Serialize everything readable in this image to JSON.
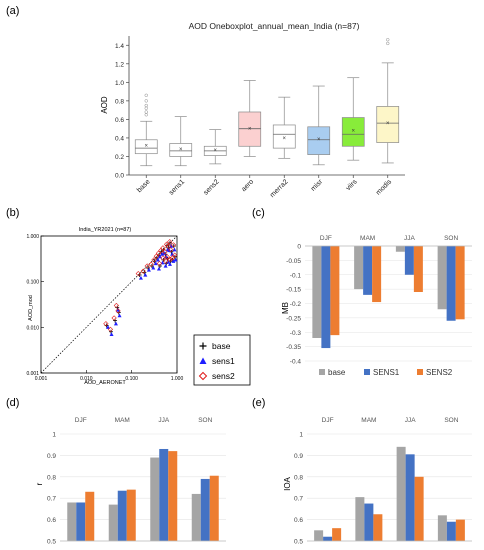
{
  "panels": {
    "a": {
      "label": "(a)"
    },
    "b": {
      "label": "(b)"
    },
    "c": {
      "label": "(c)"
    },
    "d": {
      "label": "(d)"
    },
    "e": {
      "label": "(e)"
    }
  },
  "chart_data": [
    {
      "id": "a",
      "type": "box",
      "title": "AOD Oneboxplot_annual_mean_India (n=87)",
      "ylabel": "AOD",
      "ylim": [
        0,
        1.5
      ],
      "yticks": [
        "0.0",
        "0.2",
        "0.4",
        "0.6",
        "0.8",
        "1.0",
        "1.2",
        "1.4"
      ],
      "categories": [
        "base",
        "sens1",
        "sens2",
        "aero",
        "merra2",
        "misr",
        "viirs",
        "modis"
      ],
      "colors": [
        "#ffffff",
        "#ffffff",
        "#ffffff",
        "#fbd0d0",
        "#ffffff",
        "#a9cdf0",
        "#88ec3a",
        "#fdf6c8"
      ],
      "boxes": [
        {
          "min": 0.1,
          "q1": 0.23,
          "median": 0.29,
          "q3": 0.38,
          "max": 0.58,
          "mean": 0.32,
          "outliers": [
            0.65,
            0.68,
            0.72,
            0.75,
            0.8,
            0.86
          ]
        },
        {
          "min": 0.1,
          "q1": 0.2,
          "median": 0.26,
          "q3": 0.34,
          "max": 0.63,
          "mean": 0.28,
          "outliers": []
        },
        {
          "min": 0.12,
          "q1": 0.21,
          "median": 0.26,
          "q3": 0.31,
          "max": 0.49,
          "mean": 0.27,
          "outliers": []
        },
        {
          "min": 0.2,
          "q1": 0.31,
          "median": 0.5,
          "q3": 0.68,
          "max": 1.02,
          "mean": 0.5,
          "outliers": []
        },
        {
          "min": 0.18,
          "q1": 0.29,
          "median": 0.44,
          "q3": 0.54,
          "max": 0.84,
          "mean": 0.4,
          "outliers": []
        },
        {
          "min": 0.11,
          "q1": 0.22,
          "median": 0.38,
          "q3": 0.52,
          "max": 0.96,
          "mean": 0.39,
          "outliers": []
        },
        {
          "min": 0.16,
          "q1": 0.31,
          "median": 0.44,
          "q3": 0.62,
          "max": 1.05,
          "mean": 0.48,
          "outliers": []
        },
        {
          "min": 0.13,
          "q1": 0.35,
          "median": 0.56,
          "q3": 0.74,
          "max": 1.21,
          "mean": 0.56,
          "outliers": [
            1.42,
            1.46
          ]
        }
      ]
    },
    {
      "id": "b",
      "type": "scatter",
      "title": "India_YR2021 (n=87)",
      "xlabel": "AOD_AERONET",
      "ylabel": "AOD_mod",
      "scale": "log",
      "xlim": [
        0.001,
        1
      ],
      "ylim": [
        0.001,
        1
      ],
      "ticks": [
        "0.001",
        "0.010",
        "0.100",
        "1.000"
      ],
      "legend": [
        "base",
        "sens1",
        "sens2"
      ],
      "colors": [
        "#000000",
        "#1f1fff",
        "#e01818"
      ],
      "series": [
        {
          "name": "base",
          "points": [
            [
              0.048,
              0.027
            ],
            [
              0.052,
              0.021
            ],
            [
              0.043,
              0.014
            ],
            [
              0.035,
              0.008
            ],
            [
              0.028,
              0.011
            ],
            [
              0.15,
              0.14
            ],
            [
              0.19,
              0.16
            ],
            [
              0.23,
              0.2
            ],
            [
              0.28,
              0.22
            ],
            [
              0.32,
              0.28
            ],
            [
              0.36,
              0.33
            ],
            [
              0.4,
              0.38
            ],
            [
              0.45,
              0.45
            ],
            [
              0.5,
              0.5
            ],
            [
              0.55,
              0.4
            ],
            [
              0.6,
              0.62
            ],
            [
              0.65,
              0.55
            ],
            [
              0.7,
              0.7
            ],
            [
              0.75,
              0.45
            ],
            [
              0.8,
              0.3
            ],
            [
              0.85,
              0.6
            ],
            [
              0.9,
              0.35
            ],
            [
              0.62,
              0.32
            ],
            [
              0.58,
              0.25
            ],
            [
              0.72,
              0.28
            ],
            [
              0.5,
              0.3
            ],
            [
              0.42,
              0.22
            ]
          ]
        },
        {
          "name": "sens1",
          "points": [
            [
              0.05,
              0.024
            ],
            [
              0.054,
              0.018
            ],
            [
              0.045,
              0.012
            ],
            [
              0.036,
              0.007
            ],
            [
              0.03,
              0.01
            ],
            [
              0.16,
              0.12
            ],
            [
              0.2,
              0.14
            ],
            [
              0.24,
              0.18
            ],
            [
              0.3,
              0.2
            ],
            [
              0.34,
              0.25
            ],
            [
              0.38,
              0.3
            ],
            [
              0.42,
              0.35
            ],
            [
              0.47,
              0.4
            ],
            [
              0.52,
              0.42
            ],
            [
              0.57,
              0.35
            ],
            [
              0.62,
              0.5
            ],
            [
              0.68,
              0.48
            ],
            [
              0.74,
              0.6
            ],
            [
              0.78,
              0.4
            ],
            [
              0.83,
              0.28
            ],
            [
              0.88,
              0.5
            ],
            [
              0.93,
              0.3
            ],
            [
              0.64,
              0.27
            ],
            [
              0.56,
              0.22
            ],
            [
              0.7,
              0.24
            ],
            [
              0.48,
              0.26
            ],
            [
              0.4,
              0.19
            ]
          ]
        },
        {
          "name": "sens2",
          "points": [
            [
              0.046,
              0.03
            ],
            [
              0.05,
              0.023
            ],
            [
              0.041,
              0.016
            ],
            [
              0.034,
              0.009
            ],
            [
              0.027,
              0.012
            ],
            [
              0.14,
              0.15
            ],
            [
              0.18,
              0.17
            ],
            [
              0.22,
              0.22
            ],
            [
              0.27,
              0.24
            ],
            [
              0.31,
              0.3
            ],
            [
              0.35,
              0.36
            ],
            [
              0.39,
              0.42
            ],
            [
              0.44,
              0.48
            ],
            [
              0.49,
              0.55
            ],
            [
              0.54,
              0.45
            ],
            [
              0.59,
              0.66
            ],
            [
              0.64,
              0.6
            ],
            [
              0.69,
              0.75
            ],
            [
              0.73,
              0.5
            ],
            [
              0.79,
              0.33
            ],
            [
              0.84,
              0.64
            ],
            [
              0.89,
              0.38
            ],
            [
              0.61,
              0.35
            ],
            [
              0.57,
              0.28
            ],
            [
              0.71,
              0.31
            ],
            [
              0.49,
              0.33
            ],
            [
              0.41,
              0.25
            ]
          ]
        }
      ]
    },
    {
      "id": "c",
      "type": "bar",
      "ylabel": "MB",
      "categories": [
        "DJF",
        "MAM",
        "JJA",
        "SON"
      ],
      "ylim": [
        -0.4,
        0
      ],
      "yticks": [
        "0",
        "-0.05",
        "-0.1",
        "-0.15",
        "-0.2",
        "-0.25",
        "-0.3",
        "-0.35",
        "-0.4"
      ],
      "legend_labels": [
        "base",
        "SENS1",
        "SENS2"
      ],
      "colors": [
        "#a5a5a5",
        "#4472c4",
        "#ed7d31"
      ],
      "series": [
        {
          "name": "base",
          "values": [
            -0.32,
            -0.15,
            -0.02,
            -0.22
          ]
        },
        {
          "name": "SENS1",
          "values": [
            -0.355,
            -0.17,
            -0.1,
            -0.26
          ]
        },
        {
          "name": "SENS2",
          "values": [
            -0.31,
            -0.195,
            -0.16,
            -0.255
          ]
        }
      ]
    },
    {
      "id": "d",
      "type": "bar",
      "ylabel": "r",
      "categories": [
        "DJF",
        "MAM",
        "JJA",
        "SON"
      ],
      "ylim": [
        0.5,
        1
      ],
      "yticks": [
        "0.5",
        "0.6",
        "0.7",
        "0.8",
        "0.9",
        "1"
      ],
      "colors": [
        "#a5a5a5",
        "#4472c4",
        "#ed7d31"
      ],
      "series": [
        {
          "name": "base",
          "values": [
            0.68,
            0.67,
            0.89,
            0.72
          ]
        },
        {
          "name": "SENS1",
          "values": [
            0.68,
            0.735,
            0.93,
            0.79
          ]
        },
        {
          "name": "SENS2",
          "values": [
            0.73,
            0.74,
            0.92,
            0.805
          ]
        }
      ]
    },
    {
      "id": "e",
      "type": "bar",
      "ylabel": "IOA",
      "categories": [
        "DJF",
        "MAM",
        "JJA",
        "SON"
      ],
      "ylim": [
        0.5,
        1
      ],
      "yticks": [
        "0.5",
        "0.6",
        "0.7",
        "0.8",
        "0.9",
        "1"
      ],
      "colors": [
        "#a5a5a5",
        "#4472c4",
        "#ed7d31"
      ],
      "series": [
        {
          "name": "base",
          "values": [
            0.55,
            0.705,
            0.94,
            0.62
          ]
        },
        {
          "name": "SENS1",
          "values": [
            0.52,
            0.675,
            0.905,
            0.59
          ]
        },
        {
          "name": "SENS2",
          "values": [
            0.56,
            0.625,
            0.8,
            0.6
          ]
        }
      ]
    }
  ]
}
